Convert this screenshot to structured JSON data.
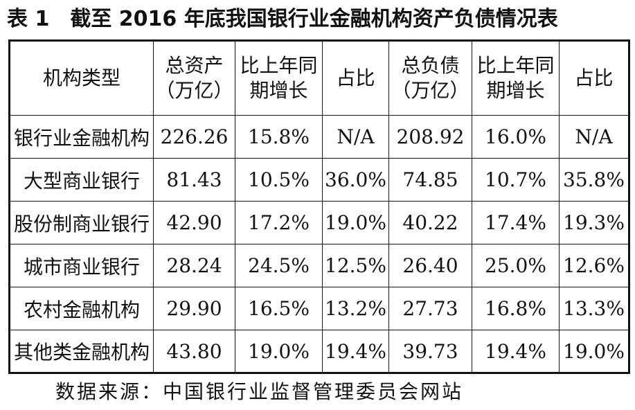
{
  "title": "表 1　截至 2016 年底我国银行业金融机构资产负债情况表",
  "headers": [
    "机构类型",
    "总资产\n（万亿）",
    "比上年同\n期增长",
    "占比",
    "总负债\n（万亿）",
    "比上年同\n期增长",
    "占比"
  ],
  "rows": [
    [
      "银行业金融机构",
      "226.26",
      "15.8%",
      "N/A",
      "208.92",
      "16.0%",
      "N/A"
    ],
    [
      "大型商业银行",
      "81.43",
      "10.5%",
      "36.0%",
      "74.85",
      "10.7%",
      "35.8%"
    ],
    [
      "股份制商业银行",
      "42.90",
      "17.2%",
      "19.0%",
      "40.22",
      "17.4%",
      "19.3%"
    ],
    [
      "城市商业银行",
      "28.24",
      "24.5%",
      "12.5%",
      "26.40",
      "25.0%",
      "12.6%"
    ],
    [
      "农村金融机构",
      "29.90",
      "16.5%",
      "13.2%",
      "27.73",
      "16.8%",
      "13.3%"
    ],
    [
      "其他类金融机构",
      "43.80",
      "19.0%",
      "19.4%",
      "39.73",
      "19.4%",
      "19.0%"
    ]
  ],
  "source": "数据来源：中国银行业监督管理委员会网站"
}
